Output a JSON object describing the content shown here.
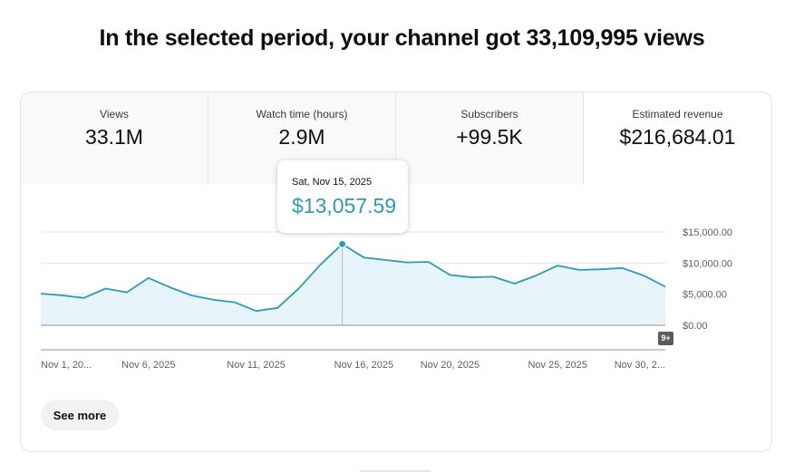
{
  "headline": "In the selected period, your channel got 33,109,995 views",
  "metrics": [
    {
      "label": "Views",
      "value": "33.1M"
    },
    {
      "label": "Watch time (hours)",
      "value": "2.9M"
    },
    {
      "label": "Subscribers",
      "value": "+99.5K"
    },
    {
      "label": "Estimated revenue",
      "value": "$216,684.01"
    }
  ],
  "tooltip": {
    "date": "Sat, Nov 15, 2025",
    "value": "$13,057.59"
  },
  "chart_data": {
    "type": "area",
    "title": "Estimated revenue",
    "x": [
      "Nov 1",
      "Nov 2",
      "Nov 3",
      "Nov 4",
      "Nov 5",
      "Nov 6",
      "Nov 7",
      "Nov 8",
      "Nov 9",
      "Nov 10",
      "Nov 11",
      "Nov 12",
      "Nov 13",
      "Nov 14",
      "Nov 15",
      "Nov 16",
      "Nov 17",
      "Nov 18",
      "Nov 19",
      "Nov 20",
      "Nov 21",
      "Nov 22",
      "Nov 23",
      "Nov 24",
      "Nov 25",
      "Nov 26",
      "Nov 27",
      "Nov 28",
      "Nov 29",
      "Nov 30"
    ],
    "values": [
      5100,
      4800,
      4400,
      5900,
      5300,
      7600,
      6100,
      4800,
      4100,
      3700,
      2300,
      2800,
      6000,
      9800,
      13057.59,
      10900,
      10500,
      10100,
      10200,
      8100,
      7700,
      7800,
      6700,
      8000,
      9600,
      8900,
      9000,
      9200,
      8000,
      6200
    ],
    "highlight_index": 14,
    "xtick_labels": [
      "Nov 1, 20...",
      "Nov 6, 2025",
      "Nov 11, 2025",
      "Nov 16, 2025",
      "Nov 20, 2025",
      "Nov 25, 2025",
      "Nov 30, 2..."
    ],
    "xtick_indices": [
      0,
      5,
      10,
      15,
      19,
      24,
      29
    ],
    "ytick_labels": [
      "$15,000.00",
      "$10,000.00",
      "$5,000.00",
      "$0.00"
    ],
    "yticks": [
      15000,
      10000,
      5000,
      0
    ],
    "ylim": [
      0,
      15000
    ],
    "line_color": "#2d9bb5",
    "fill_color": "#e7f4f9",
    "grid": true
  },
  "badge": "9+",
  "see_more": "See more"
}
